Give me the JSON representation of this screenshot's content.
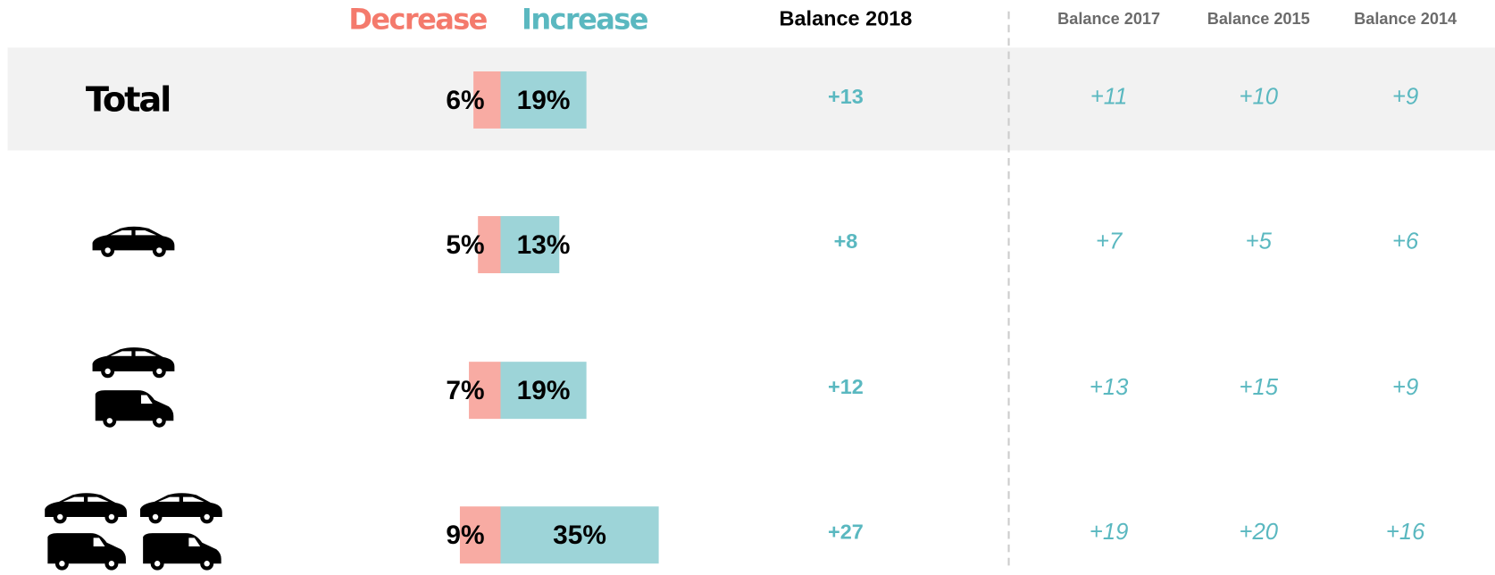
{
  "chart_data": {
    "type": "diverging_bar",
    "categories": [
      "Total",
      null,
      null,
      null
    ],
    "series": [
      {
        "name": "Decrease",
        "color": "#f8aba3",
        "text_color": "#f47a6c",
        "values": [
          6,
          5,
          7,
          9
        ],
        "value_labels": [
          "6%",
          "5%",
          "7%",
          "9%"
        ]
      },
      {
        "name": "Increase",
        "color": "#9dd4d8",
        "text_color": "#5ab8c0",
        "values": [
          19,
          13,
          19,
          35
        ],
        "value_labels": [
          "19%",
          "13%",
          "19%",
          "35%"
        ]
      }
    ],
    "columns": [
      {
        "name": "Balance 2018",
        "values": [
          13,
          8,
          12,
          27
        ],
        "value_labels": [
          "+13",
          "+8",
          "+12",
          "+27"
        ]
      },
      {
        "name": "Balance 2017",
        "values": [
          11,
          7,
          13,
          19
        ],
        "value_labels": [
          "+11",
          "+7",
          "+13",
          "+19"
        ]
      },
      {
        "name": "Balance 2015",
        "values": [
          10,
          5,
          15,
          20
        ],
        "value_labels": [
          "+10",
          "+5",
          "+15",
          "+20"
        ]
      },
      {
        "name": "Balance 2014",
        "values": [
          9,
          6,
          9,
          16
        ],
        "value_labels": [
          "+9",
          "+6",
          "+9",
          "+16"
        ]
      }
    ],
    "column_color": "#5ab8c0"
  }
}
